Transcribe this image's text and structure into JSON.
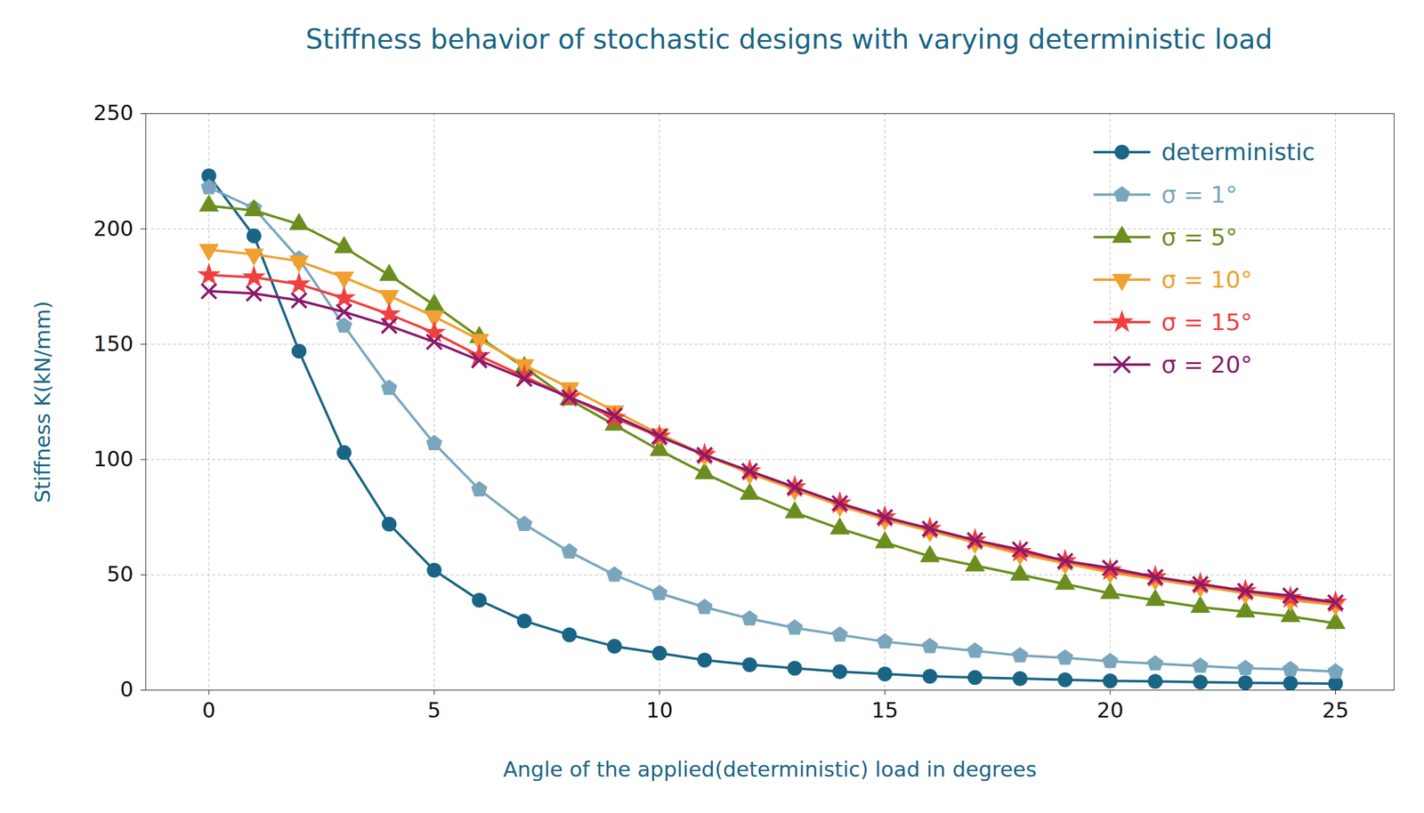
{
  "chart_data": {
    "type": "line",
    "title": "Stiffness behavior of stochastic designs with varying deterministic load",
    "x_label": "Angle of the applied(deterministic) load in degrees",
    "y_label": "Stiffness K(kN/mm)",
    "x": [
      0,
      1,
      2,
      3,
      4,
      5,
      6,
      7,
      8,
      9,
      10,
      11,
      12,
      13,
      14,
      15,
      16,
      17,
      18,
      19,
      20,
      21,
      22,
      23,
      24,
      25
    ],
    "series": [
      {
        "name": "deterministic",
        "color": "#1a6585",
        "marker": "circle",
        "values": [
          223,
          197,
          147,
          103,
          72,
          52,
          39,
          30,
          24,
          19,
          16,
          13,
          11,
          9.5,
          8,
          7,
          6,
          5.5,
          5,
          4.5,
          4,
          3.8,
          3.5,
          3.2,
          3,
          2.8
        ]
      },
      {
        "name": "σ = 1°",
        "color": "#7aa6bd",
        "marker": "pentagon",
        "values": [
          218,
          209,
          187,
          158,
          131,
          107,
          87,
          72,
          60,
          50,
          42,
          36,
          31,
          27,
          24,
          21,
          19,
          17,
          15,
          14,
          12.5,
          11.5,
          10.5,
          9.5,
          9,
          8
        ]
      },
      {
        "name": "σ = 5°",
        "color": "#6b8e1e",
        "marker": "triangle-up",
        "values": [
          210,
          208,
          202,
          192,
          180,
          167,
          153,
          140,
          126,
          115,
          104,
          94,
          85,
          77,
          70,
          64,
          58,
          54,
          50,
          46,
          42,
          39,
          36,
          34,
          32,
          29
        ]
      },
      {
        "name": "σ = 10°",
        "color": "#f0a030",
        "marker": "triangle-down",
        "values": [
          191,
          189,
          186,
          179,
          171,
          162,
          152,
          141,
          131,
          121,
          111,
          102,
          94,
          87,
          80,
          74,
          69,
          64,
          59,
          55,
          51,
          48,
          45,
          42,
          39,
          37
        ]
      },
      {
        "name": "σ = 15°",
        "color": "#ef4040",
        "marker": "star",
        "values": [
          180,
          179,
          176,
          170,
          163,
          155,
          145,
          136,
          127,
          118,
          110,
          102,
          95,
          88,
          81,
          75,
          70,
          65,
          60,
          56,
          52,
          49,
          46,
          43,
          40,
          38
        ]
      },
      {
        "name": "σ = 20°",
        "color": "#8b1a6b",
        "marker": "x",
        "values": [
          173,
          172,
          169,
          164,
          158,
          151,
          143,
          135,
          127,
          119,
          110,
          102,
          95,
          88,
          81,
          75,
          70,
          65,
          61,
          56,
          53,
          49,
          46,
          43,
          41,
          38
        ]
      }
    ],
    "xlim": [
      -1.4,
      26.3
    ],
    "ylim": [
      0,
      250
    ],
    "xticks": [
      0,
      5,
      10,
      15,
      20,
      25
    ],
    "yticks": [
      0,
      50,
      100,
      150,
      200,
      250
    ],
    "grid": true,
    "legend": "upper right"
  }
}
